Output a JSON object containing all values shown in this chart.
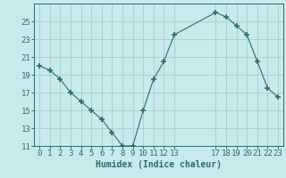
{
  "x": [
    0,
    1,
    2,
    3,
    4,
    5,
    6,
    7,
    8,
    9,
    10,
    11,
    12,
    13,
    17,
    18,
    19,
    20,
    21,
    22,
    23
  ],
  "y": [
    20.0,
    19.5,
    18.5,
    17.0,
    16.0,
    15.0,
    14.0,
    12.5,
    11.0,
    11.0,
    15.0,
    18.5,
    20.5,
    23.5,
    26.0,
    25.5,
    24.5,
    23.5,
    20.5,
    17.5,
    16.5
  ],
  "line_color": "#2d6b6b",
  "marker": "+",
  "marker_size": 4,
  "marker_lw": 1.2,
  "bg_color": "#c8eaea",
  "grid_color": "#aacccc",
  "xlabel": "Humidex (Indice chaleur)",
  "ylim": [
    11,
    27
  ],
  "xlim": [
    -0.5,
    23.5
  ],
  "yticks": [
    11,
    13,
    15,
    17,
    19,
    21,
    23,
    25
  ],
  "xticks": [
    0,
    1,
    2,
    3,
    4,
    5,
    6,
    7,
    8,
    9,
    10,
    11,
    12,
    13,
    17,
    18,
    19,
    20,
    21,
    22,
    23
  ],
  "xtick_labels": [
    "0",
    "1",
    "2",
    "3",
    "4",
    "5",
    "6",
    "7",
    "8",
    "9",
    "10",
    "11",
    "12",
    "13",
    "17",
    "18",
    "19",
    "20",
    "21",
    "22",
    "23"
  ],
  "label_fontsize": 7,
  "tick_fontsize": 6.5
}
